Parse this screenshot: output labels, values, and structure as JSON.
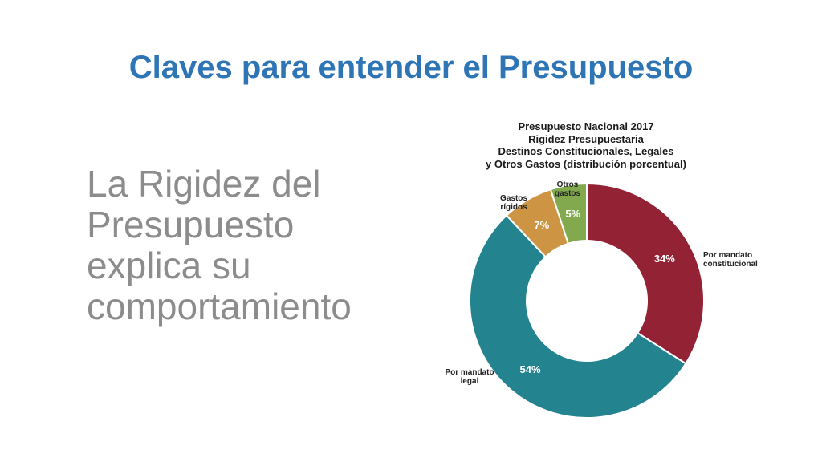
{
  "slide": {
    "title": "Claves para entender el Presupuesto",
    "body_lines": [
      "La Rigidez del",
      "Presupuesto",
      "explica su",
      "comportamiento"
    ]
  },
  "chart_data": {
    "type": "pie",
    "title_lines": [
      "Presupuesto Nacional 2017",
      "Rigidez Presupuestaria",
      "Destinos Constitucionales, Legales",
      "y Otros Gastos (distribución porcentual)"
    ],
    "slices": [
      {
        "label_lines": [
          "Por mandato",
          "constitucional"
        ],
        "value": 34,
        "value_label": "34%",
        "color": "#932234"
      },
      {
        "label_lines": [
          "Por mandato",
          "legal"
        ],
        "value": 54,
        "value_label": "54%",
        "color": "#23838f"
      },
      {
        "label_lines": [
          "Gastos",
          "rígidos"
        ],
        "value": 7,
        "value_label": "7%",
        "color": "#cc9443"
      },
      {
        "label_lines": [
          "Otros",
          "gastos"
        ],
        "value": 5,
        "value_label": "5%",
        "color": "#82a94e"
      }
    ],
    "legend": "none"
  }
}
